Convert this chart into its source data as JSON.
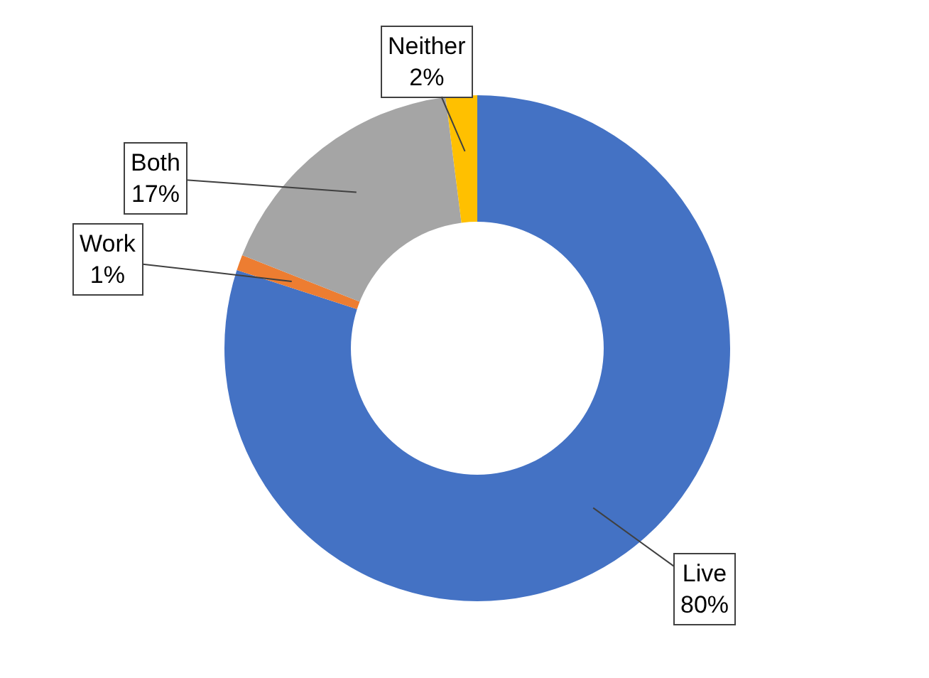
{
  "chart_data": {
    "type": "donut",
    "categories": [
      "Live",
      "Work",
      "Both",
      "Neither"
    ],
    "values": [
      80,
      1,
      17,
      2
    ],
    "colors": [
      "#4472c4",
      "#ed7d31",
      "#a5a5a5",
      "#ffc000"
    ],
    "value_labels": [
      "80%",
      "1%",
      "17%",
      "2%"
    ]
  }
}
